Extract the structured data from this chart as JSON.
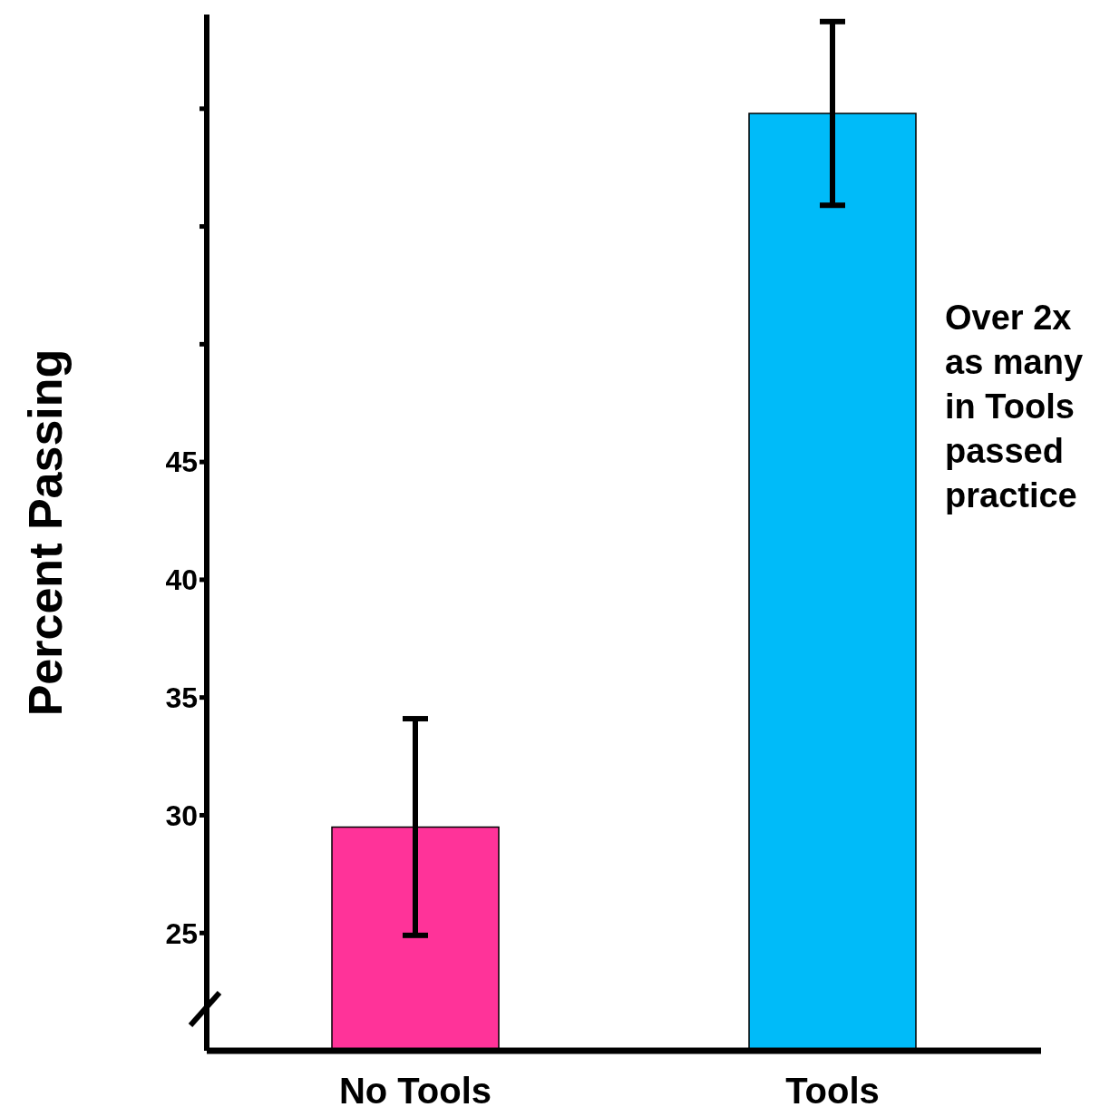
{
  "chart_data": {
    "type": "bar",
    "ylabel": "Percent Passing",
    "categories": [
      "No Tools",
      "Tools"
    ],
    "values": [
      29.5,
      59.8
    ],
    "colors": [
      "#ff3399",
      "#00bbf9"
    ],
    "errors": [
      4.6,
      3.9
    ],
    "ylim": [
      20,
      64
    ],
    "yticks": [
      25,
      30,
      35,
      40,
      45,
      {
        "value": 50,
        "label": null
      },
      {
        "value": 55,
        "label": null
      },
      {
        "value": 60,
        "label": null
      }
    ],
    "annotations": [
      "Over 2x as many in Tools passed practice"
    ]
  }
}
